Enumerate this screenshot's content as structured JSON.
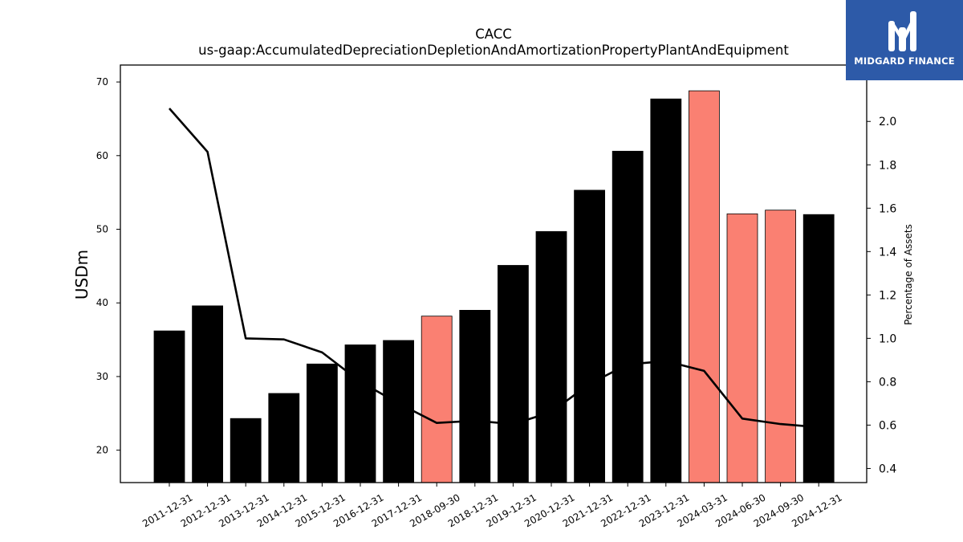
{
  "logo": {
    "text": "MIDGARD FINANCE",
    "background": "#2d5aa8"
  },
  "chart_data": {
    "type": "bar",
    "title": "CACC",
    "subtitle": "us-gaap:AccumulatedDepreciationDepletionAndAmortizationPropertyPlantAndEquipment",
    "ylabel": "USDm",
    "y2label": "Percentage of Assets",
    "ylim": [
      15.6,
      72.3
    ],
    "y2lim": [
      0.335,
      2.26
    ],
    "yticks": [
      20,
      30,
      40,
      50,
      60,
      70
    ],
    "y2ticks": [
      0.4,
      0.6,
      0.8,
      1.0,
      1.2,
      1.4,
      1.6,
      1.8,
      2.0
    ],
    "grid": false,
    "categories": [
      "2011-12-31",
      "2012-12-31",
      "2013-12-31",
      "2014-12-31",
      "2015-12-31",
      "2016-12-31",
      "2017-12-31",
      "2018-09-30",
      "2018-12-31",
      "2019-12-31",
      "2020-12-31",
      "2021-12-31",
      "2022-12-31",
      "2023-12-31",
      "2024-03-31",
      "2024-06-30",
      "2024-09-30",
      "2024-12-31"
    ],
    "series": [
      {
        "type": "bar",
        "axis": "left",
        "values": [
          36.2,
          39.6,
          24.3,
          27.7,
          31.7,
          34.3,
          34.9,
          38.2,
          39.0,
          45.1,
          49.7,
          55.3,
          60.6,
          67.7,
          68.8,
          52.1,
          52.6,
          52.0
        ],
        "colors": [
          "#000000",
          "#000000",
          "#000000",
          "#000000",
          "#000000",
          "#000000",
          "#000000",
          "#fa8072",
          "#000000",
          "#000000",
          "#000000",
          "#000000",
          "#000000",
          "#000000",
          "#fa8072",
          "#fa8072",
          "#fa8072",
          "#000000"
        ]
      },
      {
        "type": "line",
        "axis": "right",
        "color": "#000000",
        "values": [
          2.06,
          1.86,
          1.0,
          0.995,
          0.935,
          0.8,
          0.7,
          0.61,
          0.62,
          0.605,
          0.66,
          0.79,
          0.88,
          0.895,
          0.85,
          0.63,
          0.605,
          0.59
        ]
      }
    ]
  }
}
